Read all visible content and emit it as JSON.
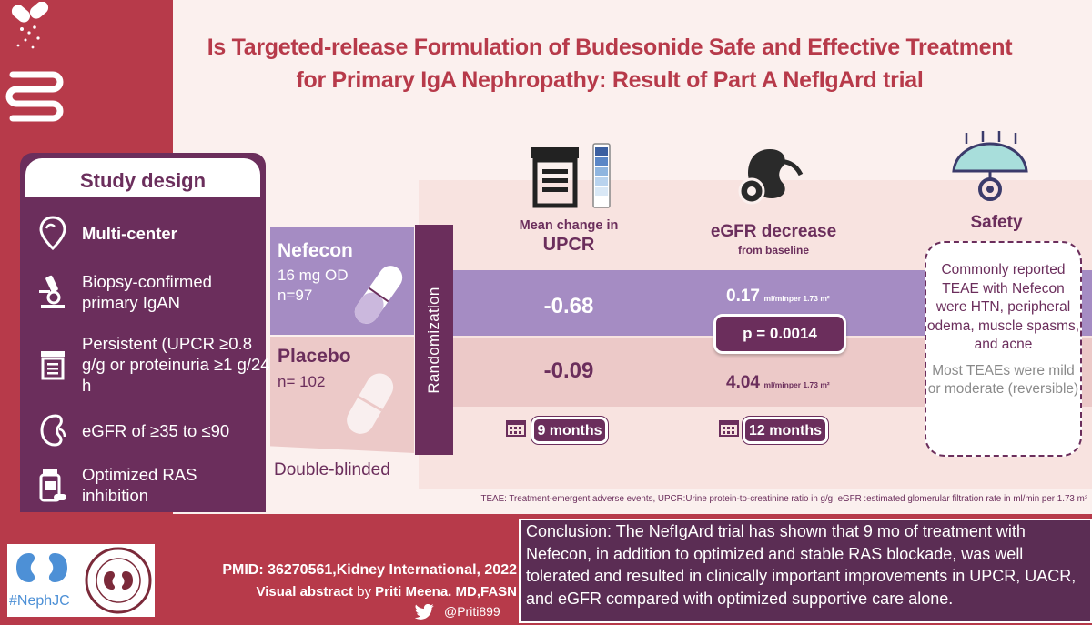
{
  "title": {
    "line1": "Is Targeted-release Formulation of Budesonide Safe and Effective Treatment",
    "line2": "for Primary IgA Nephropathy: Result of Part A NefIgArd trial"
  },
  "study_design": {
    "heading": "Study design",
    "items": [
      {
        "icon": "location-pin-icon",
        "text": "Multi-center"
      },
      {
        "icon": "microscope-icon",
        "text": "Biopsy-confirmed primary IgAN"
      },
      {
        "icon": "lab-jar-icon",
        "text": "Persistent (UPCR ≥0.8 g/g or proteinuria ≥1 g/24 h"
      },
      {
        "icon": "kidney-icon",
        "text": "eGFR of ≥35 to ≤90"
      },
      {
        "icon": "pill-bottle-icon",
        "text": "Optimized RAS inhibition"
      }
    ]
  },
  "arms": {
    "nefecon": {
      "name": "Nefecon",
      "dose": "16 mg OD",
      "n": "n=97"
    },
    "placebo": {
      "name": "Placebo",
      "n": "n= 102"
    },
    "randomization": "Randomization",
    "blinding": "Double-blinded"
  },
  "upcr": {
    "header_small": "Mean change in",
    "header_big": "UPCR",
    "nefecon": "-0.68",
    "placebo": "-0.09",
    "duration": "9 months"
  },
  "egfr": {
    "header_big": "eGFR decrease",
    "header_small": "from baseline",
    "nefecon_value": "0.17",
    "placebo_value": "4.04",
    "unit": "ml/minper 1.73 m²",
    "p_value": "p = 0.0014",
    "duration": "12 months"
  },
  "safety": {
    "header": "Safety",
    "text1": "Commonly reported TEAE with Nefecon were HTN, peripheral odema, muscle spasms, and acne",
    "text2": "Most TEAEs were mild or moderate (reversible)"
  },
  "footnote": "TEAE: Treatment-emergent adverse events, UPCR:Urine protein-to-creatinine ratio in g/g, eGFR :estimated glomerular filtration rate in ml/min per 1.73 m²",
  "citation": {
    "pmid": "PMID: 36270561,Kidney International, 2022",
    "visual_abstract_label": "Visual abstract",
    "visual_abstract_by": "by",
    "author": "Priti Meena. MD,FASN",
    "twitter": "@Priti899",
    "hashtag": "#NephJC"
  },
  "conclusion": "Conclusion: The NefIgArd trial has shown that 9 mo of treatment with Nefecon, in addition to optimized and stable RAS blockade, was well tolerated and resulted in clinically important improvements in UPCR, UACR, and eGFR compared with optimized supportive care alone.",
  "colors": {
    "brand_red": "#b73a4a",
    "purple_dark": "#6b2e5c",
    "purple_light": "#a58cc3",
    "pink_light": "#ecc9c8"
  }
}
